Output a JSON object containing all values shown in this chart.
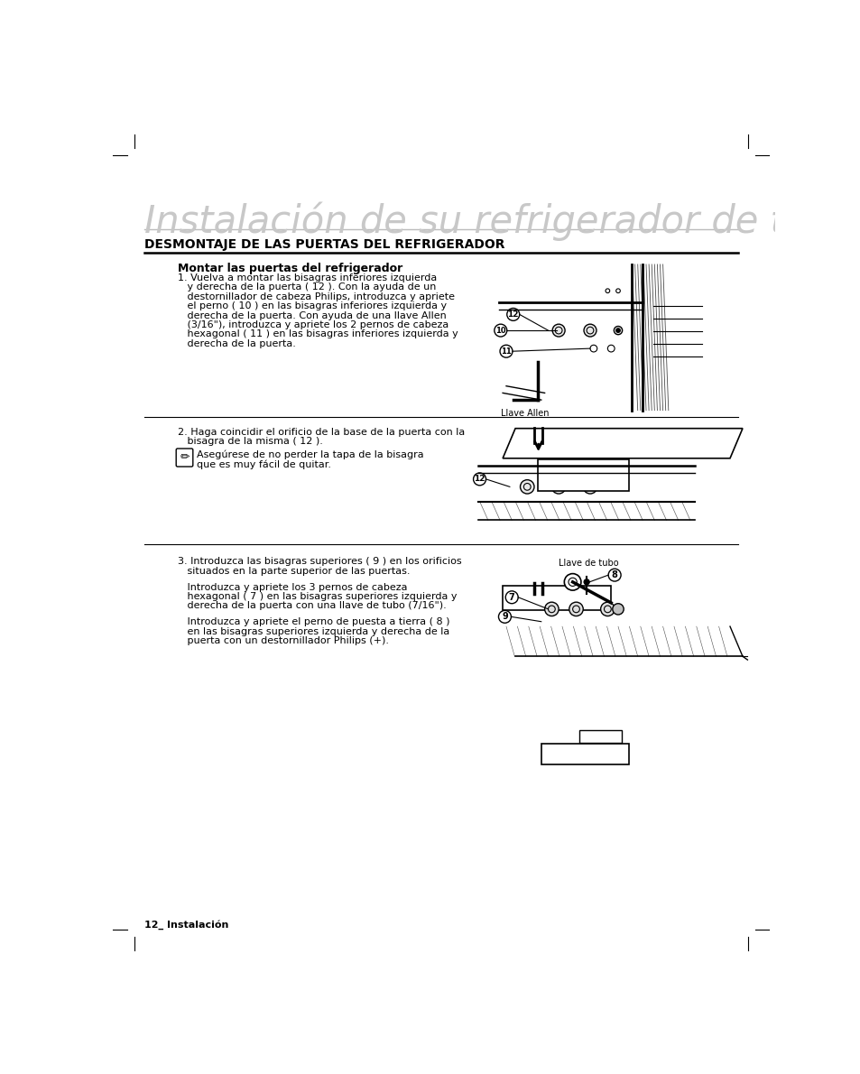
{
  "bg_color": "#ffffff",
  "page_width": 9.54,
  "page_height": 11.9,
  "title": "Instalación de su refrigerador de tres puertas",
  "section_header": "DESMONTAJE DE LAS PUERTAS DEL REFRIGERADOR",
  "subsection": "Montar las puertas del refrigerador",
  "step1_lines": [
    "1. Vuelva a montar las bisagras inferiores izquierda",
    "   y derecha de la puerta ( 12 ). Con la ayuda de un",
    "   destornillador de cabeza Philips, introduzca y apriete",
    "   el perno ( 10 ) en las bisagras inferiores izquierda y",
    "   derecha de la puerta. Con ayuda de una llave Allen",
    "   (3/16\"), introduzca y apriete los 2 pernos de cabeza",
    "   hexagonal ( 11 ) en las bisagras inferiores izquierda y",
    "   derecha de la puerta."
  ],
  "step2_lines": [
    "2. Haga coincidir el orificio de la base de la puerta con la",
    "   bisagra de la misma ( 12 )."
  ],
  "note_line1": "Asegúrese de no perder la tapa de la bisagra",
  "note_line2": "que es muy fácil de quitar.",
  "step3a_lines": [
    "3. Introduzca las bisagras superiores ( 9 ) en los orificios",
    "   situados en la parte superior de las puertas."
  ],
  "step3b_lines": [
    "   Introduzca y apriete los 3 pernos de cabeza",
    "   hexagonal ( 7 ) en las bisagras superiores izquierda y",
    "   derecha de la puerta con una llave de tubo (7/16\")."
  ],
  "step3c_lines": [
    "   Introduzca y apriete el perno de puesta a tierra ( 8 )",
    "   en las bisagras superiores izquierda y derecha de la",
    "   puerta con un destornillador Philips (+)."
  ],
  "footer_text": "12_ Instalación",
  "llave_allen": "Llave Allen",
  "llave_tubo": "Llave de tubo",
  "title_color": "#c8c8c8",
  "title_fontsize": 30,
  "section_fontsize": 10,
  "body_fontsize": 8,
  "sub_fontsize": 9
}
